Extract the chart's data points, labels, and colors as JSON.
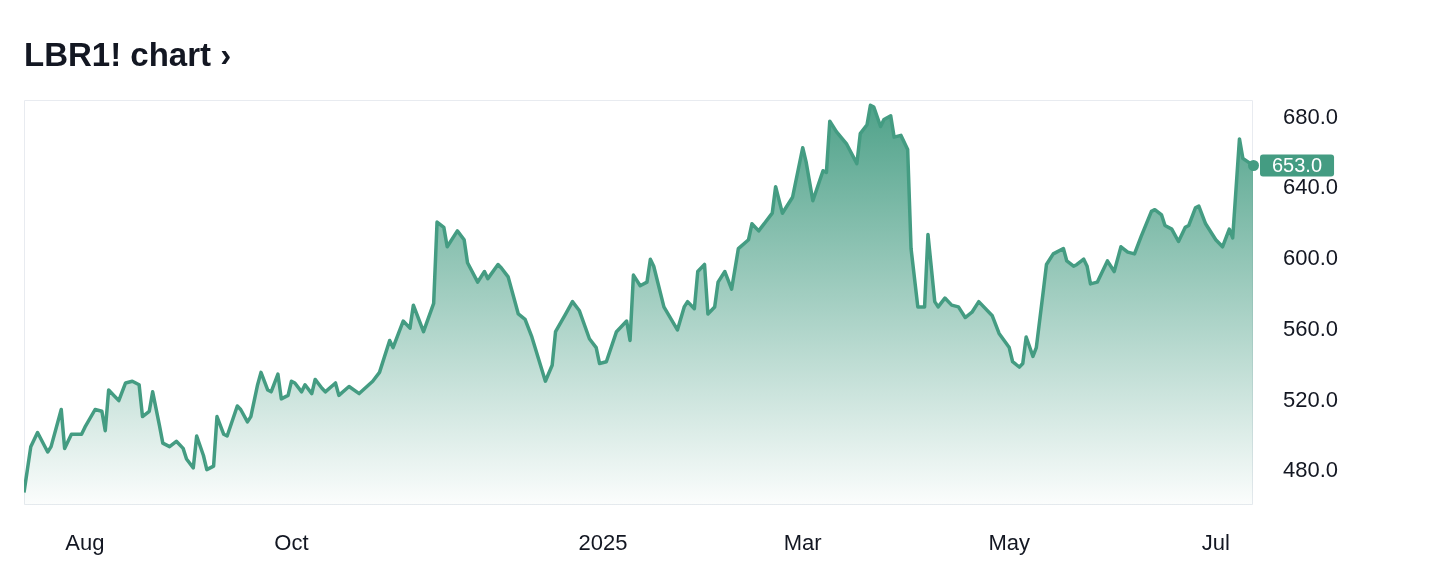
{
  "chart_data": {
    "type": "area",
    "title": "LBR1! chart ›",
    "x": [
      "2024-07-14",
      "2024-07-16",
      "2024-07-18",
      "2024-07-21",
      "2024-07-22",
      "2024-07-25",
      "2024-07-26",
      "2024-07-28",
      "2024-07-31",
      "2024-08-01",
      "2024-08-04",
      "2024-08-06",
      "2024-08-07",
      "2024-08-08",
      "2024-08-11",
      "2024-08-13",
      "2024-08-15",
      "2024-08-17",
      "2024-08-18",
      "2024-08-20",
      "2024-08-21",
      "2024-08-23",
      "2024-08-24",
      "2024-08-26",
      "2024-08-28",
      "2024-08-30",
      "2024-08-31",
      "2024-09-02",
      "2024-09-03",
      "2024-09-05",
      "2024-09-06",
      "2024-09-08",
      "2024-09-09",
      "2024-09-11",
      "2024-09-12",
      "2024-09-15",
      "2024-09-16",
      "2024-09-18",
      "2024-09-19",
      "2024-09-21",
      "2024-09-22",
      "2024-09-24",
      "2024-09-25",
      "2024-09-27",
      "2024-09-28",
      "2024-09-30",
      "2024-10-01",
      "2024-10-02",
      "2024-10-04",
      "2024-10-05",
      "2024-10-07",
      "2024-10-08",
      "2024-10-10",
      "2024-10-11",
      "2024-10-14",
      "2024-10-15",
      "2024-10-18",
      "2024-10-21",
      "2024-10-25",
      "2024-10-27",
      "2024-10-30",
      "2024-10-31",
      "2024-11-03",
      "2024-11-05",
      "2024-11-06",
      "2024-11-09",
      "2024-11-12",
      "2024-11-13",
      "2024-11-15",
      "2024-11-16",
      "2024-11-19",
      "2024-11-21",
      "2024-11-22",
      "2024-11-25",
      "2024-11-27",
      "2024-11-28",
      "2024-12-01",
      "2024-12-02",
      "2024-12-04",
      "2024-12-07",
      "2024-12-09",
      "2024-12-11",
      "2024-12-15",
      "2024-12-17",
      "2024-12-18",
      "2024-12-21",
      "2024-12-23",
      "2024-12-25",
      "2024-12-28",
      "2024-12-30",
      "2024-12-31",
      "2025-01-02",
      "2025-01-05",
      "2025-01-08",
      "2025-01-09",
      "2025-01-10",
      "2025-01-12",
      "2025-01-14",
      "2025-01-15",
      "2025-01-16",
      "2025-01-19",
      "2025-01-23",
      "2025-01-25",
      "2025-01-26",
      "2025-01-28",
      "2025-01-29",
      "2025-01-31",
      "2025-02-01",
      "2025-02-03",
      "2025-02-04",
      "2025-02-06",
      "2025-02-08",
      "2025-02-10",
      "2025-02-13",
      "2025-02-14",
      "2025-02-16",
      "2025-02-20",
      "2025-02-21",
      "2025-02-23",
      "2025-02-26",
      "2025-03-01",
      "2025-03-02",
      "2025-03-04",
      "2025-03-07",
      "2025-03-08",
      "2025-03-09",
      "2025-03-11",
      "2025-03-14",
      "2025-03-17",
      "2025-03-18",
      "2025-03-20",
      "2025-03-21",
      "2025-03-22",
      "2025-03-24",
      "2025-03-25",
      "2025-03-27",
      "2025-03-28",
      "2025-03-30",
      "2025-04-01",
      "2025-04-02",
      "2025-04-04",
      "2025-04-06",
      "2025-04-07",
      "2025-04-09",
      "2025-04-10",
      "2025-04-12",
      "2025-04-14",
      "2025-04-16",
      "2025-04-18",
      "2025-04-20",
      "2025-04-22",
      "2025-04-26",
      "2025-04-28",
      "2025-05-01",
      "2025-05-02",
      "2025-05-04",
      "2025-05-05",
      "2025-05-06",
      "2025-05-08",
      "2025-05-09",
      "2025-05-11",
      "2025-05-12",
      "2025-05-14",
      "2025-05-15",
      "2025-05-17",
      "2025-05-18",
      "2025-05-20",
      "2025-05-21",
      "2025-05-23",
      "2025-05-24",
      "2025-05-25",
      "2025-05-27",
      "2025-05-30",
      "2025-06-01",
      "2025-06-03",
      "2025-06-05",
      "2025-06-07",
      "2025-06-09",
      "2025-06-12",
      "2025-06-13",
      "2025-06-15",
      "2025-06-16",
      "2025-06-18",
      "2025-06-20",
      "2025-06-22",
      "2025-06-23",
      "2025-06-25",
      "2025-06-26",
      "2025-06-28",
      "2025-07-01",
      "2025-07-03",
      "2025-07-05",
      "2025-07-06",
      "2025-07-08",
      "2025-07-09",
      "2025-07-12"
    ],
    "series": [
      {
        "color": "#449c82",
        "values": [
          468,
          494,
          502,
          491,
          494,
          515,
          493,
          501,
          501,
          505,
          515,
          514,
          503,
          526,
          520,
          530,
          531,
          529,
          511,
          514,
          525,
          506,
          496,
          494,
          497,
          493,
          487,
          482,
          500,
          489,
          481,
          483,
          511,
          501,
          500,
          517,
          515,
          508,
          511,
          529,
          536,
          526,
          525,
          535,
          521,
          523,
          531,
          530,
          525,
          529,
          524,
          532,
          527,
          525,
          530,
          523,
          528,
          524,
          531,
          536,
          554,
          550,
          565,
          561,
          574,
          559,
          575,
          621,
          618,
          607,
          616,
          611,
          598,
          587,
          593,
          589,
          597,
          595,
          590,
          569,
          566,
          556,
          531,
          540,
          559,
          569,
          576,
          571,
          555,
          550,
          541,
          542,
          559,
          565,
          554,
          591,
          585,
          587,
          600,
          596,
          573,
          560,
          573,
          576,
          572,
          593,
          597,
          569,
          573,
          587,
          593,
          583,
          606,
          611,
          620,
          616,
          626,
          641,
          626,
          635,
          663,
          655,
          633,
          650,
          649,
          678,
          672,
          665,
          654,
          671,
          676,
          687,
          686,
          675,
          679,
          681,
          669,
          670,
          662,
          606,
          573,
          573,
          614,
          576,
          573,
          578,
          574,
          573,
          567,
          570,
          576,
          568,
          558,
          550,
          542,
          539,
          541,
          556,
          545,
          550,
          581,
          597,
          603,
          604,
          606,
          599,
          596,
          597,
          600,
          596,
          586,
          587,
          599,
          593,
          607,
          604,
          603,
          613,
          627,
          628,
          625,
          619,
          617,
          610,
          618,
          619,
          629,
          630,
          620,
          611,
          607,
          617,
          612,
          668,
          657,
          653
        ]
      }
    ],
    "xlim": [
      "2024-07-14",
      "2025-07-12"
    ],
    "xticks": [
      {
        "value": "2024-08-01",
        "label": "Aug"
      },
      {
        "value": "2024-10-01",
        "label": "Oct"
      },
      {
        "value": "2025-01-01",
        "label": "2025"
      },
      {
        "value": "2025-03-01",
        "label": "Mar"
      },
      {
        "value": "2025-05-01",
        "label": "May"
      },
      {
        "value": "2025-07-01",
        "label": "Jul"
      }
    ],
    "ylim": [
      461,
      690
    ],
    "yticks": [
      {
        "value": 480,
        "label": "480.0"
      },
      {
        "value": 520,
        "label": "520.0"
      },
      {
        "value": 560,
        "label": "560.0"
      },
      {
        "value": 600,
        "label": "600.0"
      },
      {
        "value": 640,
        "label": "640.0"
      },
      {
        "value": 680,
        "label": "680.0"
      }
    ],
    "annotations": [
      {
        "text": "653.0",
        "x": "2025-07-12",
        "y": 653
      }
    ],
    "grid": false,
    "legend": false,
    "marker": "none",
    "line_style": "solid"
  }
}
